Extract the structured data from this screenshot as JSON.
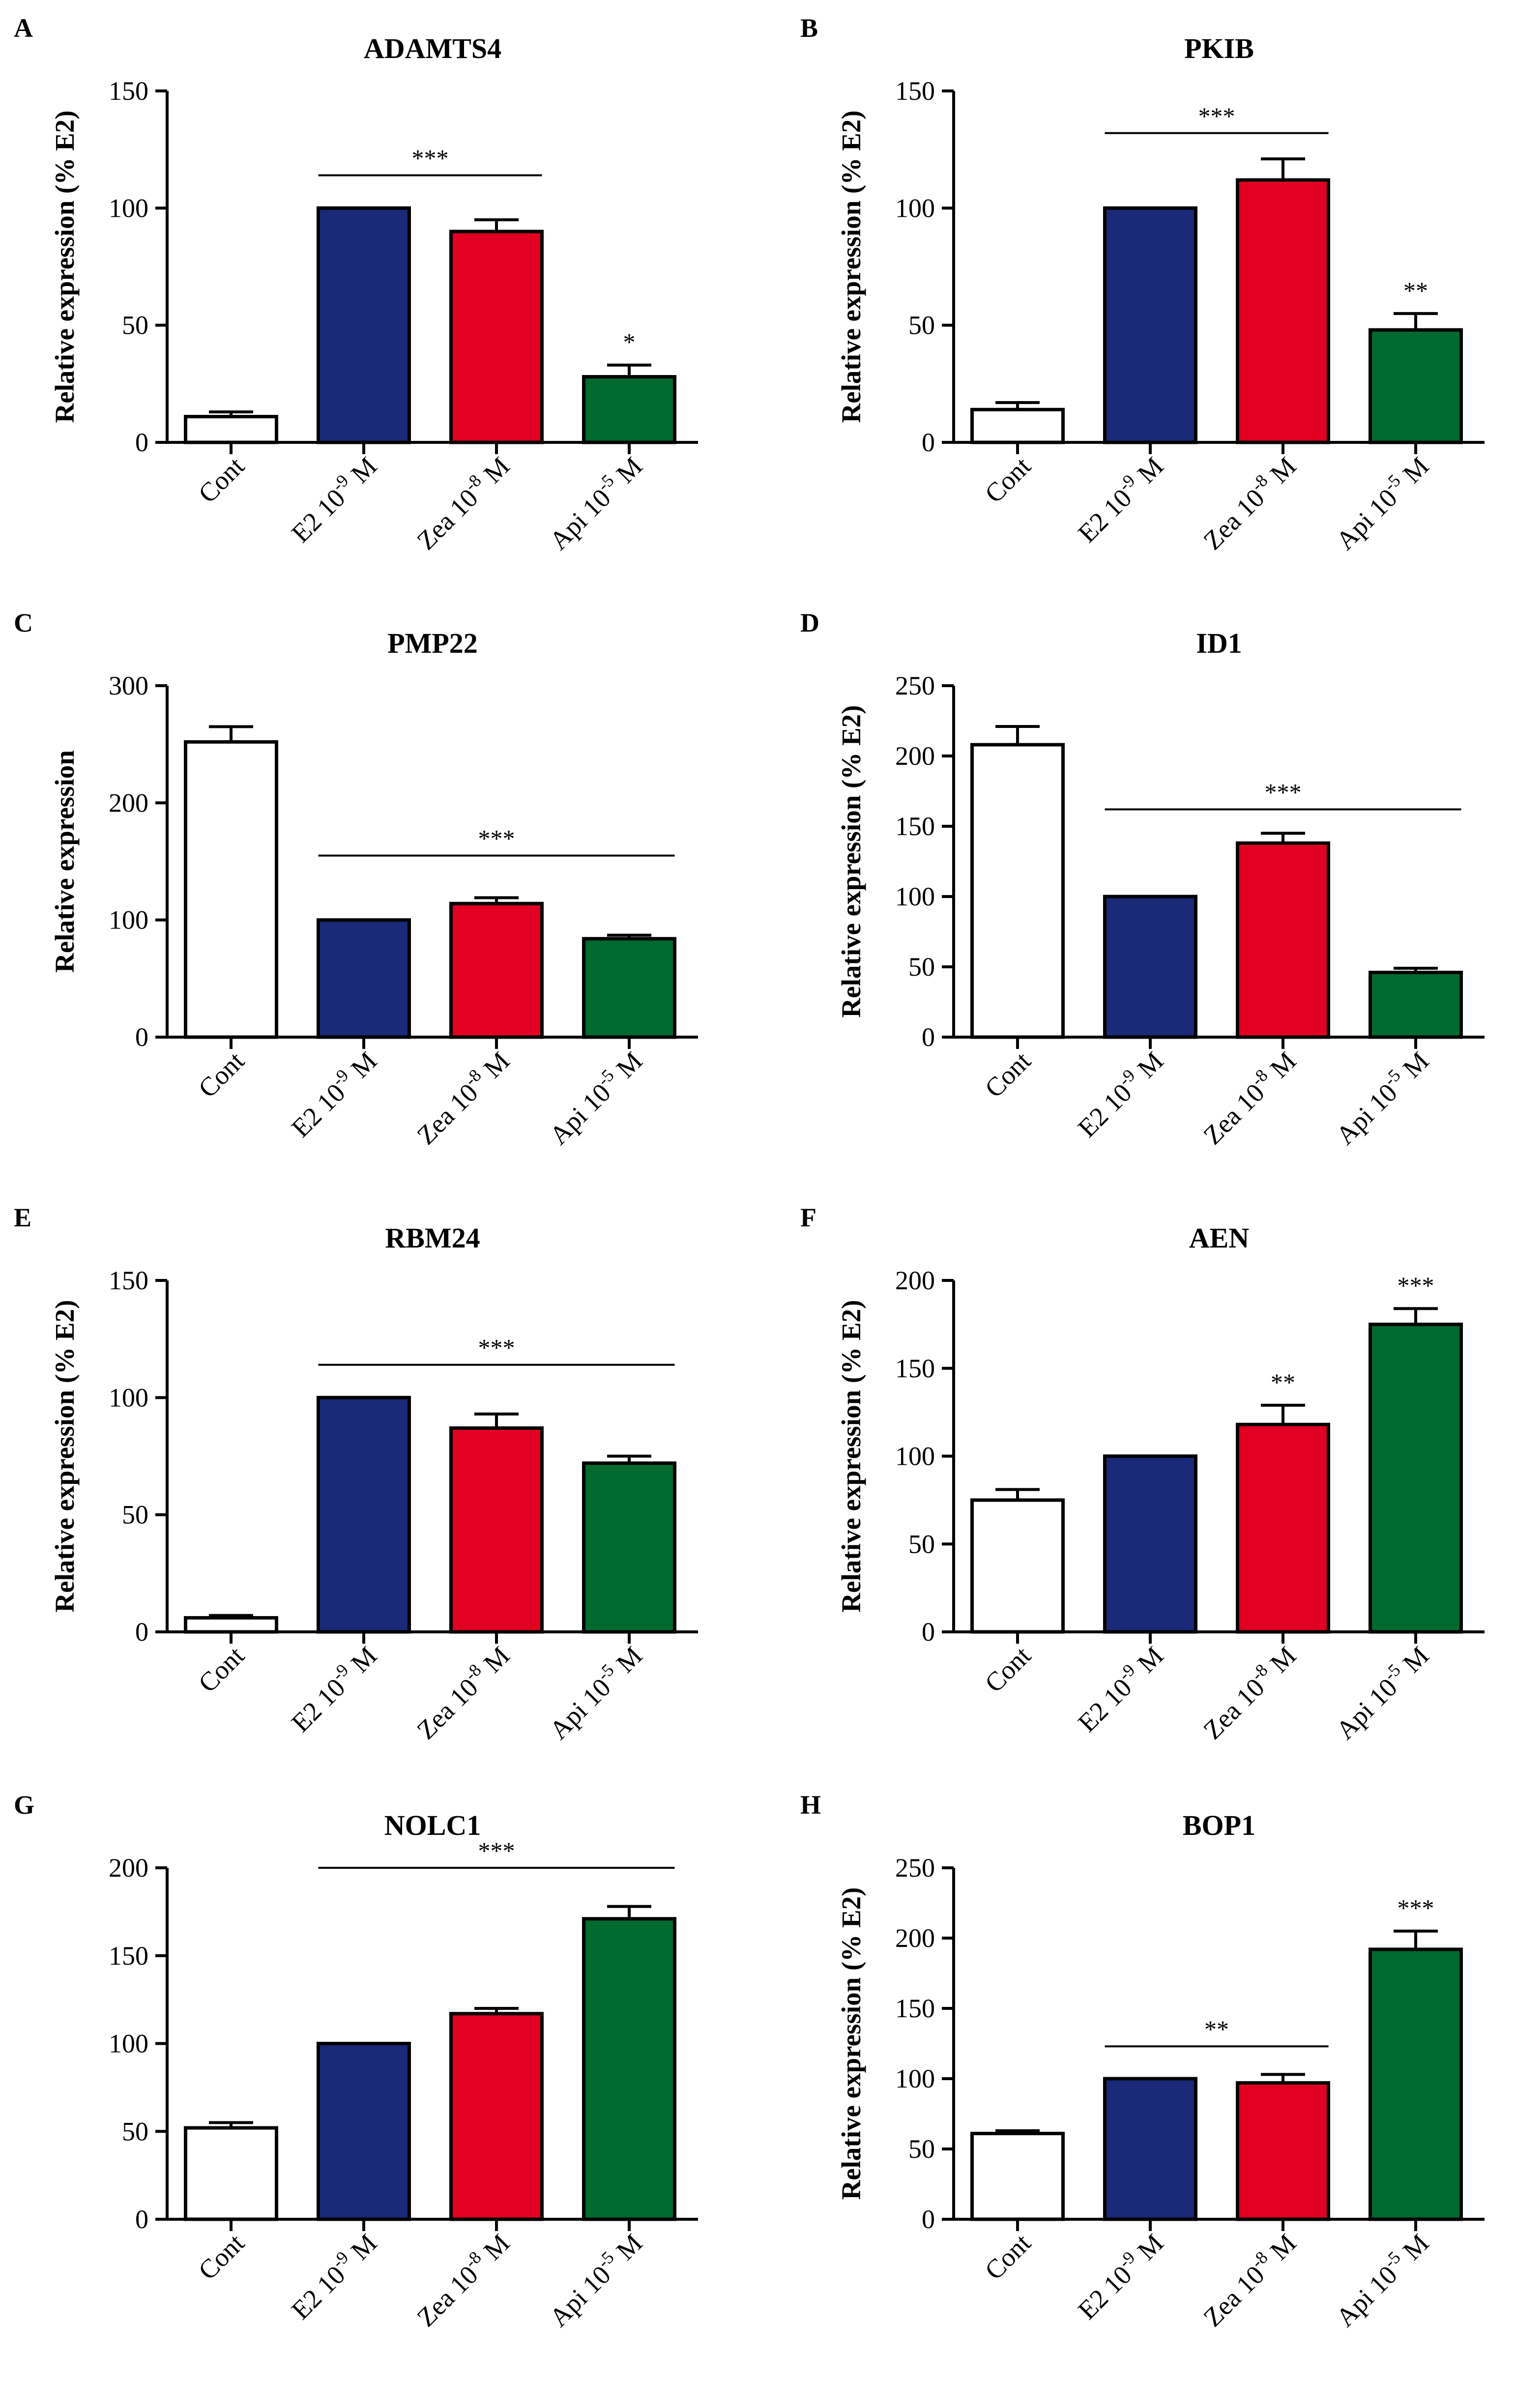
{
  "colors": {
    "Cont": "#ffffff",
    "E2": "#1a2a78",
    "Zea": "#e10022",
    "Api": "#006a2e",
    "axis": "#000000"
  },
  "chart_data": [
    {
      "id": "A",
      "panel": "A",
      "type": "bar",
      "title": "ADAMTS4",
      "ylabel": "Relative expression (% E2)",
      "ylim": [
        0,
        150
      ],
      "yticks": [
        "0",
        "50",
        "100",
        "150"
      ],
      "categories": [
        {
          "key": "Cont",
          "base": "Cont",
          "sup": "",
          "unit": ""
        },
        {
          "key": "E2",
          "base": "E2 10",
          "sup": "-9",
          "unit": " M"
        },
        {
          "key": "Zea",
          "base": "Zea 10",
          "sup": "-8",
          "unit": " M"
        },
        {
          "key": "Api",
          "base": "Api 10",
          "sup": "-5",
          "unit": " M"
        }
      ],
      "values": [
        11,
        100,
        90,
        28
      ],
      "errors": [
        2,
        0,
        5,
        5
      ],
      "significance": [
        {
          "label": "***",
          "type": "line",
          "from": 1,
          "to": 2,
          "y": 114
        },
        {
          "label": "*",
          "type": "bar",
          "bar": 3
        }
      ]
    },
    {
      "id": "B",
      "panel": "B",
      "type": "bar",
      "title": "PKIB",
      "ylabel": "Relative expression (% E2)",
      "ylim": [
        0,
        150
      ],
      "yticks": [
        "0",
        "50",
        "100",
        "150"
      ],
      "categories": [
        {
          "key": "Cont",
          "base": "Cont",
          "sup": "",
          "unit": ""
        },
        {
          "key": "E2",
          "base": "E2 10",
          "sup": "-9",
          "unit": " M"
        },
        {
          "key": "Zea",
          "base": "Zea 10",
          "sup": "-8",
          "unit": " M"
        },
        {
          "key": "Api",
          "base": "Api 10",
          "sup": "-5",
          "unit": " M"
        }
      ],
      "values": [
        14,
        100,
        112,
        48
      ],
      "errors": [
        3,
        0,
        9,
        7
      ],
      "significance": [
        {
          "label": "***",
          "type": "line",
          "from": 1,
          "to": 2,
          "y": 132
        },
        {
          "label": "**",
          "type": "bar",
          "bar": 3
        }
      ]
    },
    {
      "id": "C",
      "panel": "C",
      "type": "bar",
      "title": "PMP22",
      "ylabel": "Relative expression",
      "ylim": [
        0,
        300
      ],
      "yticks": [
        "0",
        "100",
        "200",
        "300"
      ],
      "categories": [
        {
          "key": "Cont",
          "base": "Cont",
          "sup": "",
          "unit": ""
        },
        {
          "key": "E2",
          "base": "E2 10",
          "sup": "-9",
          "unit": " M"
        },
        {
          "key": "Zea",
          "base": "Zea 10",
          "sup": "-8",
          "unit": " M"
        },
        {
          "key": "Api",
          "base": "Api 10",
          "sup": "-5",
          "unit": " M"
        }
      ],
      "values": [
        252,
        100,
        114,
        84
      ],
      "errors": [
        13,
        0,
        5,
        3
      ],
      "significance": [
        {
          "label": "***",
          "type": "line",
          "from": 1,
          "to": 3,
          "y": 155
        }
      ]
    },
    {
      "id": "D",
      "panel": "D",
      "type": "bar",
      "title": "ID1",
      "ylabel": "Relative expression (% E2)",
      "ylim": [
        0,
        250
      ],
      "yticks": [
        "0",
        "50",
        "100",
        "150",
        "200",
        "250"
      ],
      "categories": [
        {
          "key": "Cont",
          "base": "Cont",
          "sup": "",
          "unit": ""
        },
        {
          "key": "E2",
          "base": "E2 10",
          "sup": "-9",
          "unit": " M"
        },
        {
          "key": "Zea",
          "base": "Zea 10",
          "sup": "-8",
          "unit": " M"
        },
        {
          "key": "Api",
          "base": "Api 10",
          "sup": "-5",
          "unit": " M"
        }
      ],
      "values": [
        208,
        100,
        138,
        46
      ],
      "errors": [
        13,
        0,
        7,
        3
      ],
      "significance": [
        {
          "label": "***",
          "type": "line",
          "from": 1,
          "to": 3,
          "y": 162
        }
      ]
    },
    {
      "id": "E",
      "panel": "E",
      "type": "bar",
      "title": "RBM24",
      "ylabel": "Relative expression (% E2)",
      "ylim": [
        0,
        150
      ],
      "yticks": [
        "0",
        "50",
        "100",
        "150"
      ],
      "categories": [
        {
          "key": "Cont",
          "base": "Cont",
          "sup": "",
          "unit": ""
        },
        {
          "key": "E2",
          "base": "E2 10",
          "sup": "-9",
          "unit": " M"
        },
        {
          "key": "Zea",
          "base": "Zea 10",
          "sup": "-8",
          "unit": " M"
        },
        {
          "key": "Api",
          "base": "Api 10",
          "sup": "-5",
          "unit": " M"
        }
      ],
      "values": [
        6,
        100,
        87,
        72
      ],
      "errors": [
        1,
        0,
        6,
        3
      ],
      "significance": [
        {
          "label": "***",
          "type": "line",
          "from": 1,
          "to": 3,
          "y": 114
        }
      ]
    },
    {
      "id": "F",
      "panel": "F",
      "type": "bar",
      "title": "AEN",
      "ylabel": "Relative expression (% E2)",
      "ylim": [
        0,
        200
      ],
      "yticks": [
        "0",
        "50",
        "100",
        "150",
        "200"
      ],
      "categories": [
        {
          "key": "Cont",
          "base": "Cont",
          "sup": "",
          "unit": ""
        },
        {
          "key": "E2",
          "base": "E2 10",
          "sup": "-9",
          "unit": " M"
        },
        {
          "key": "Zea",
          "base": "Zea 10",
          "sup": "-8",
          "unit": " M"
        },
        {
          "key": "Api",
          "base": "Api 10",
          "sup": "-5",
          "unit": " M"
        }
      ],
      "values": [
        75,
        100,
        118,
        175
      ],
      "errors": [
        6,
        0,
        11,
        9
      ],
      "significance": [
        {
          "label": "**",
          "type": "bar",
          "bar": 2
        },
        {
          "label": "***",
          "type": "bar",
          "bar": 3
        }
      ]
    },
    {
      "id": "G",
      "panel": "G",
      "type": "bar",
      "title": "NOLC1",
      "ylabel": "",
      "ylim": [
        0,
        200
      ],
      "yticks": [
        "0",
        "50",
        "100",
        "150",
        "200"
      ],
      "categories": [
        {
          "key": "Cont",
          "base": "Cont",
          "sup": "",
          "unit": ""
        },
        {
          "key": "E2",
          "base": "E2 10",
          "sup": "-9",
          "unit": " M"
        },
        {
          "key": "Zea",
          "base": "Zea 10",
          "sup": "-8",
          "unit": " M"
        },
        {
          "key": "Api",
          "base": "Api 10",
          "sup": "-5",
          "unit": " M"
        }
      ],
      "values": [
        52,
        100,
        117,
        171
      ],
      "errors": [
        3,
        0,
        3,
        7
      ],
      "significance": [
        {
          "label": "***",
          "type": "line",
          "from": 1,
          "to": 3,
          "y": 200
        }
      ]
    },
    {
      "id": "H",
      "panel": "H",
      "type": "bar",
      "title": "BOP1",
      "ylabel": "Relative expression (% E2)",
      "ylim": [
        0,
        250
      ],
      "yticks": [
        "0",
        "50",
        "100",
        "150",
        "200",
        "250"
      ],
      "categories": [
        {
          "key": "Cont",
          "base": "Cont",
          "sup": "",
          "unit": ""
        },
        {
          "key": "E2",
          "base": "E2 10",
          "sup": "-9",
          "unit": " M"
        },
        {
          "key": "Zea",
          "base": "Zea 10",
          "sup": "-8",
          "unit": " M"
        },
        {
          "key": "Api",
          "base": "Api 10",
          "sup": "-5",
          "unit": " M"
        }
      ],
      "values": [
        61,
        100,
        97,
        192
      ],
      "errors": [
        2,
        0,
        6,
        13
      ],
      "significance": [
        {
          "label": "**",
          "type": "line",
          "from": 1,
          "to": 2,
          "y": 123
        },
        {
          "label": "***",
          "type": "bar",
          "bar": 3
        }
      ]
    }
  ]
}
